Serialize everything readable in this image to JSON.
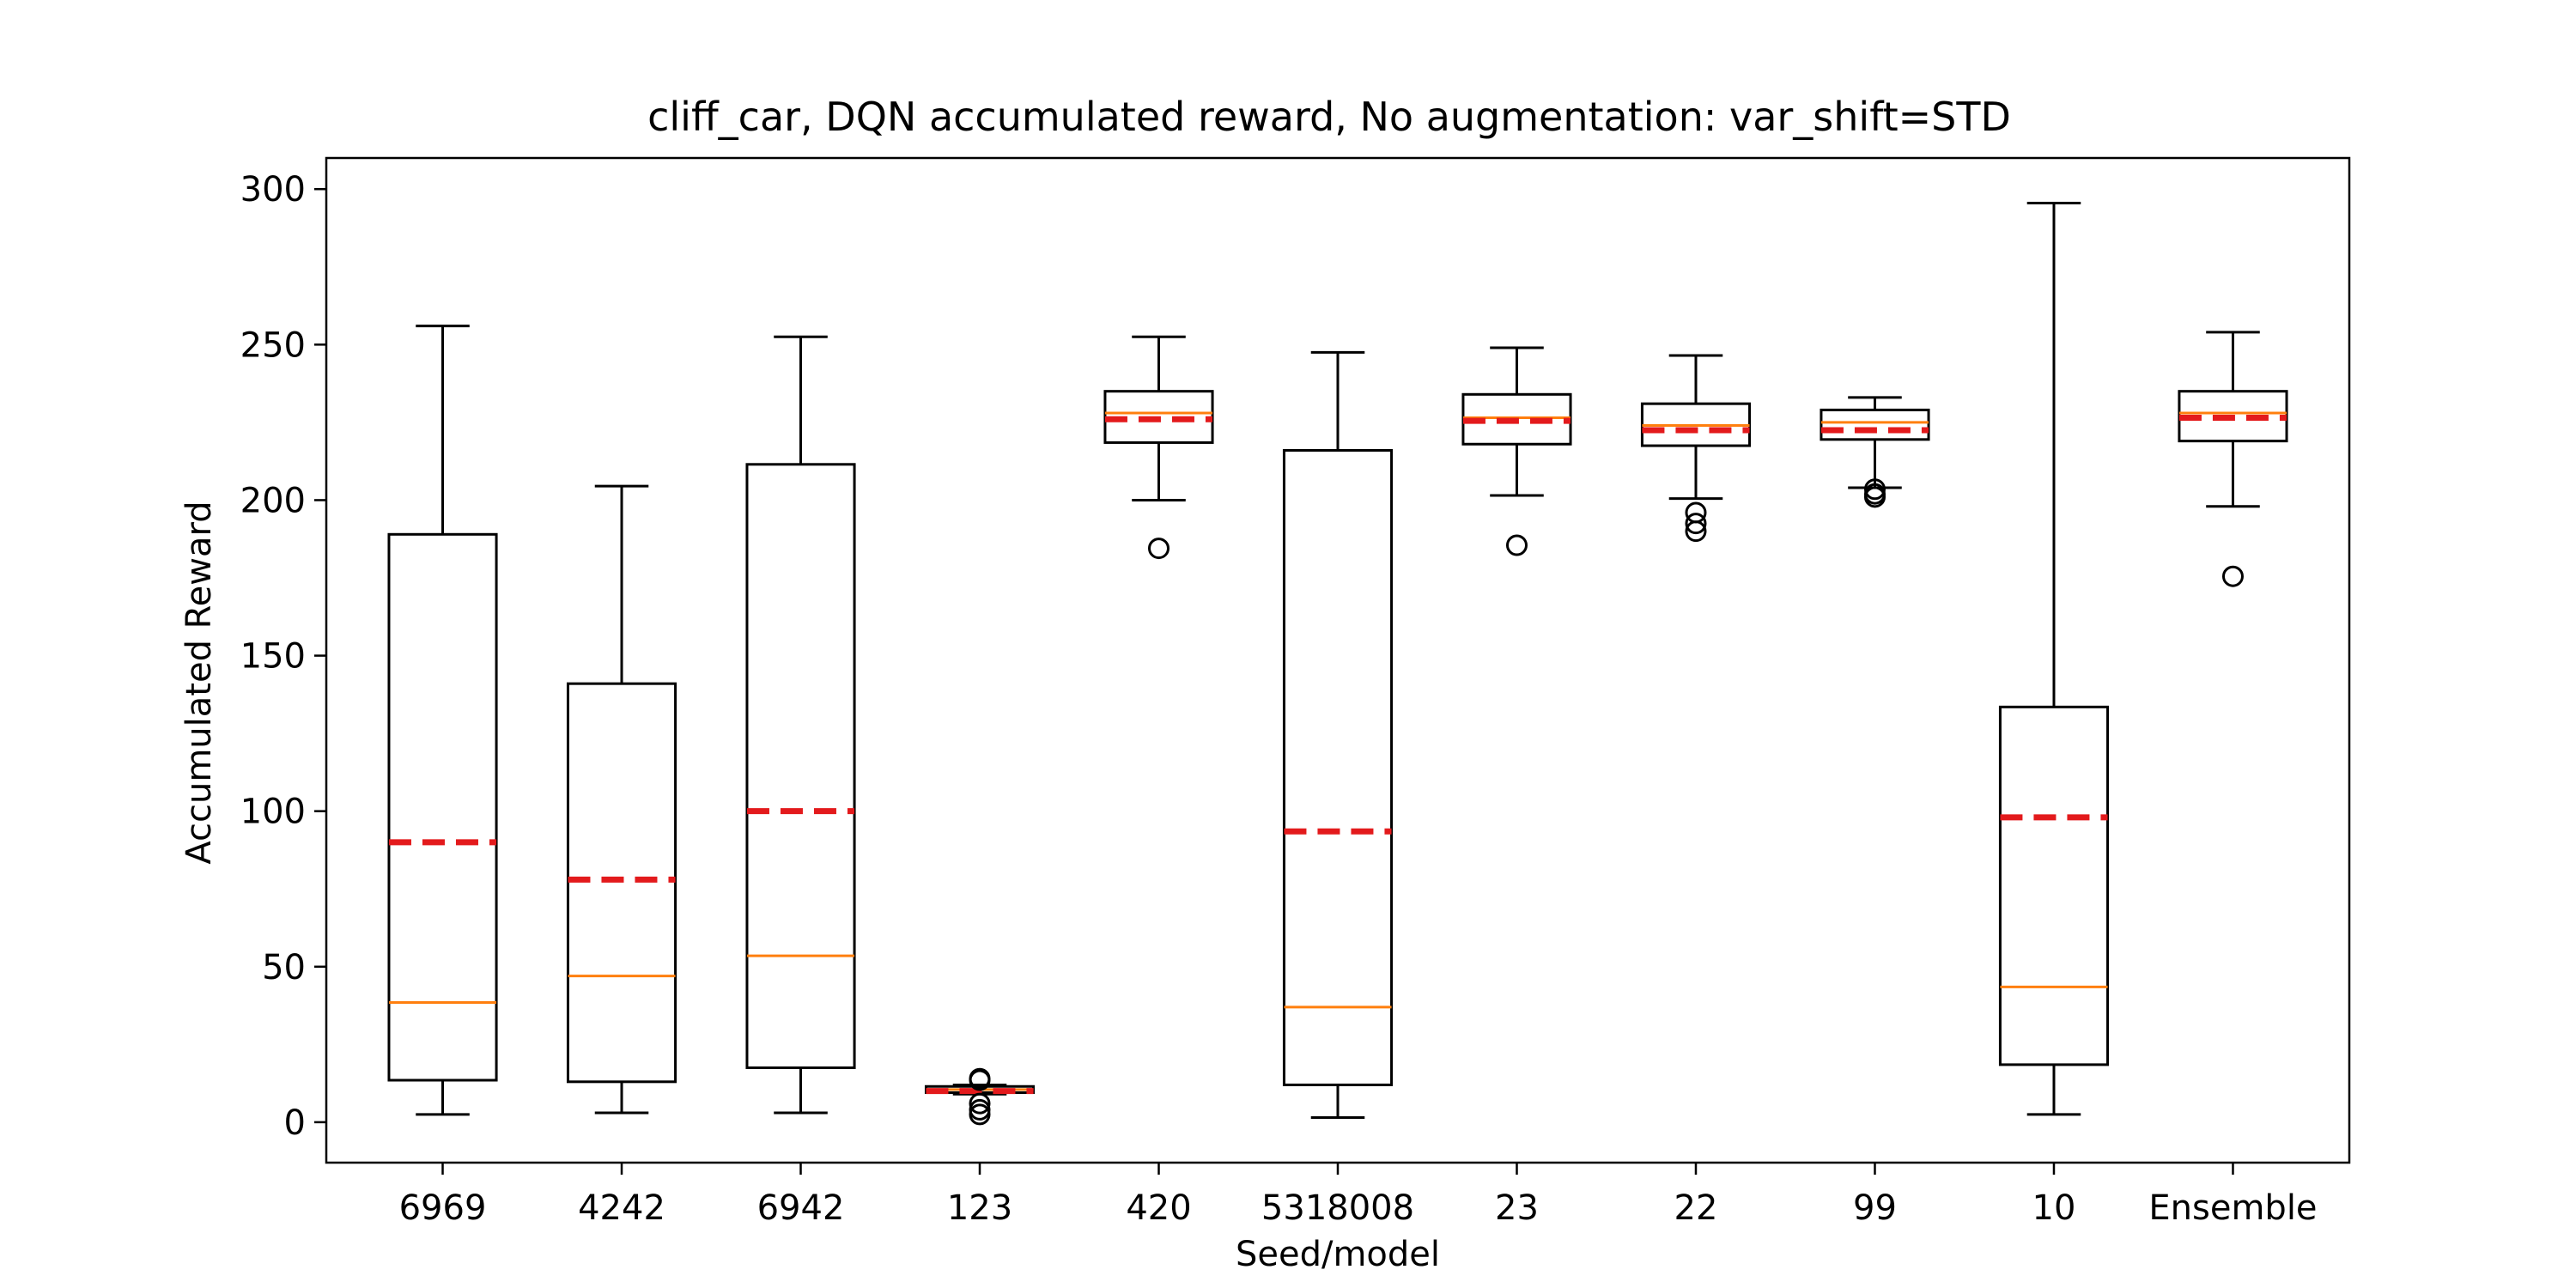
{
  "chart_data": {
    "type": "box",
    "title": "cliff_car, DQN accumulated reward, No augmentation: var_shift=STD",
    "xlabel": "Seed/model",
    "ylabel": "Accumulated Reward",
    "ylim": [
      -13,
      310
    ],
    "yticks": [
      0,
      50,
      100,
      150,
      200,
      250,
      300
    ],
    "categories": [
      "6969",
      "4242",
      "6942",
      "123",
      "420",
      "5318008",
      "23",
      "22",
      "99",
      "10",
      "Ensemble"
    ],
    "boxes": [
      {
        "whisker_low": 2.5,
        "q1": 13.5,
        "median": 38.5,
        "q3": 189,
        "whisker_high": 256,
        "mean": 90,
        "outliers": []
      },
      {
        "whisker_low": 3,
        "q1": 13,
        "median": 47,
        "q3": 141,
        "whisker_high": 204.5,
        "mean": 78,
        "outliers": []
      },
      {
        "whisker_low": 3,
        "q1": 17.5,
        "median": 53.5,
        "q3": 211.5,
        "whisker_high": 252.5,
        "mean": 100,
        "outliers": []
      },
      {
        "whisker_low": 9,
        "q1": 9.5,
        "median": 10.5,
        "q3": 11.5,
        "whisker_high": 12,
        "mean": 10,
        "outliers": [
          2.5,
          4,
          6,
          13.5,
          14
        ]
      },
      {
        "whisker_low": 200,
        "q1": 218.5,
        "median": 228,
        "q3": 235,
        "whisker_high": 252.5,
        "mean": 226,
        "outliers": [
          184.5
        ]
      },
      {
        "whisker_low": 1.5,
        "q1": 12,
        "median": 37,
        "q3": 216,
        "whisker_high": 247.5,
        "mean": 93.5,
        "outliers": []
      },
      {
        "whisker_low": 201.5,
        "q1": 218,
        "median": 226.5,
        "q3": 234,
        "whisker_high": 249,
        "mean": 225.5,
        "outliers": [
          185.5
        ]
      },
      {
        "whisker_low": 200.5,
        "q1": 217.5,
        "median": 224,
        "q3": 231,
        "whisker_high": 246.5,
        "mean": 222.5,
        "outliers": [
          190,
          192.5,
          196
        ]
      },
      {
        "whisker_low": 204,
        "q1": 219.5,
        "median": 225,
        "q3": 229,
        "whisker_high": 233,
        "mean": 222.5,
        "outliers": [
          201,
          202,
          203.5
        ]
      },
      {
        "whisker_low": 2.5,
        "q1": 18.5,
        "median": 43.5,
        "q3": 133.5,
        "whisker_high": 295.5,
        "mean": 98,
        "outliers": []
      },
      {
        "whisker_low": 198,
        "q1": 219,
        "median": 228,
        "q3": 235,
        "whisker_high": 254,
        "mean": 226.5,
        "outliers": [
          175.5
        ]
      }
    ],
    "colors": {
      "box": "#000000",
      "median": "#ff7f0e",
      "mean": "#e31a1c"
    },
    "grid": false,
    "legend": "none"
  }
}
